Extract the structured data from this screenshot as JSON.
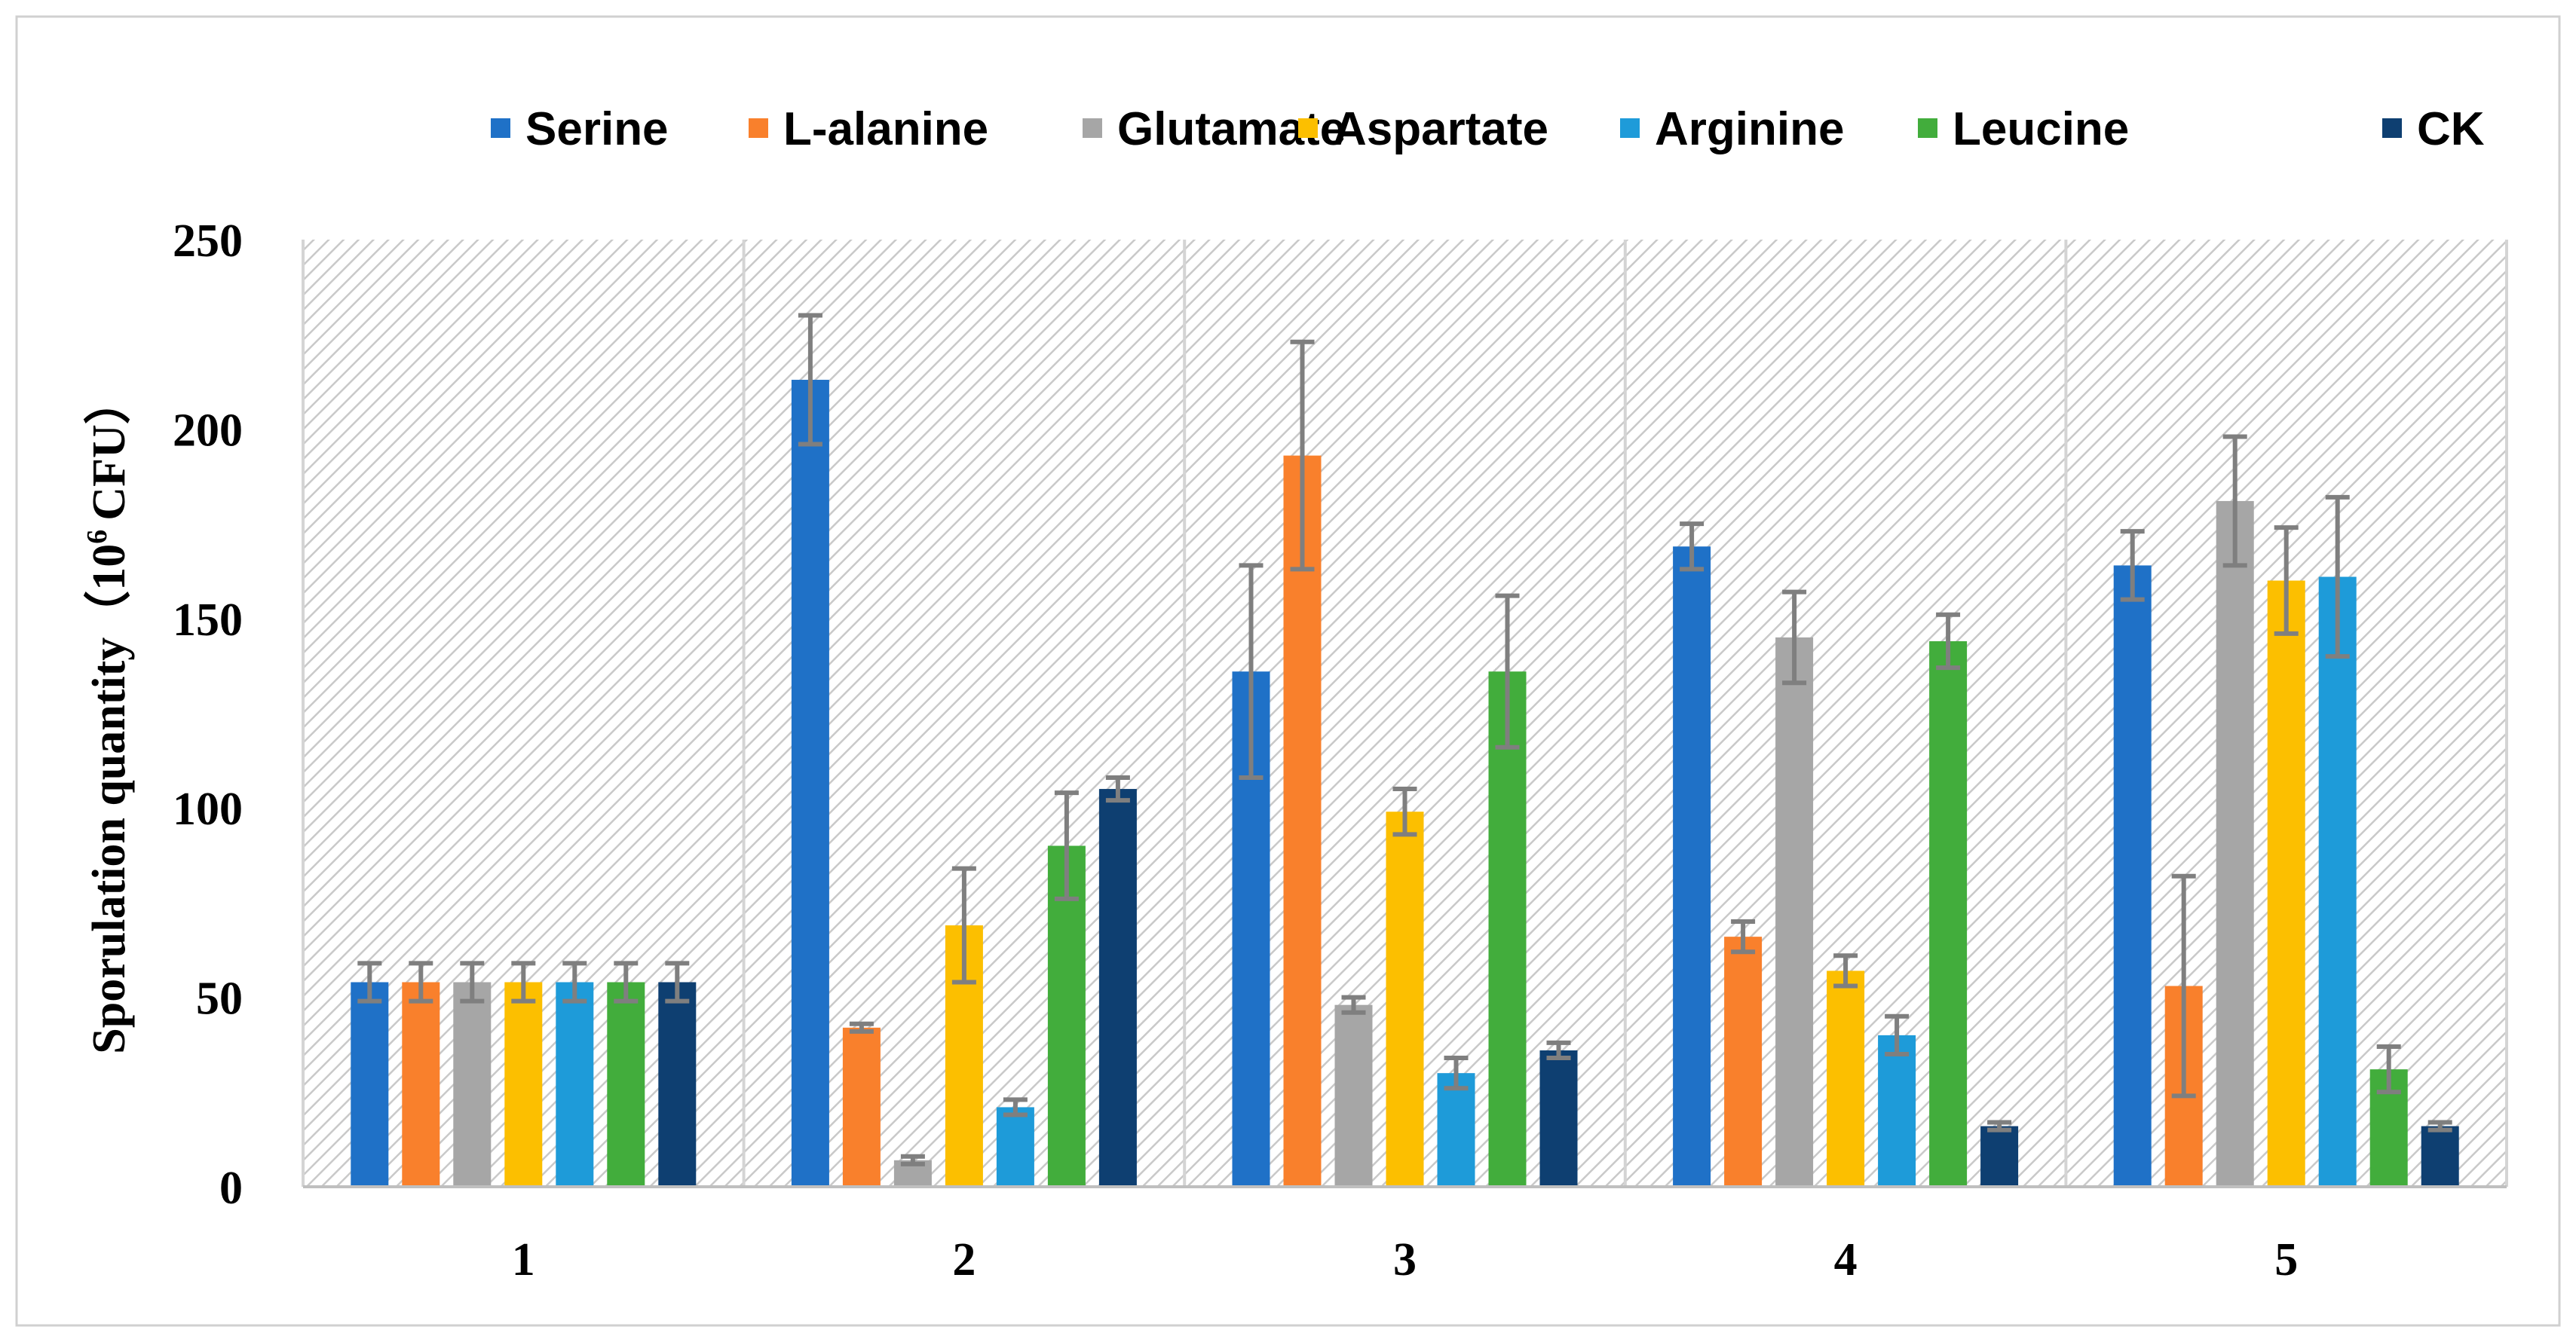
{
  "chart_data": {
    "type": "bar",
    "title": "",
    "xlabel": "",
    "ylabel": "Sporulation quantity（10",
    "ylabel_superscript": "6",
    "ylabel_unit": "CFU）",
    "ylim": [
      0,
      250
    ],
    "yticks": [
      "0",
      "50",
      "100",
      "150",
      "200",
      "250"
    ],
    "grid": false,
    "legend_position": "top",
    "categories": [
      "1",
      "2",
      "3",
      "4",
      "5"
    ],
    "series": [
      {
        "name": "Serine",
        "color": "#1f71c7",
        "values": [
          54,
          213,
          136,
          169,
          164
        ],
        "errors": [
          5,
          17,
          28,
          6,
          9
        ]
      },
      {
        "name": "L-alanine",
        "color": "#f9802c",
        "values": [
          54,
          42,
          193,
          66,
          53
        ],
        "errors": [
          5,
          1,
          30,
          4,
          29
        ]
      },
      {
        "name": "Glutamate",
        "color": "#a6a6a6",
        "values": [
          54,
          7,
          48,
          145,
          181
        ],
        "errors": [
          5,
          1,
          2,
          12,
          17
        ]
      },
      {
        "name": "Aspartate",
        "color": "#fcbf00",
        "values": [
          54,
          69,
          99,
          57,
          160
        ],
        "errors": [
          5,
          15,
          6,
          4,
          14
        ]
      },
      {
        "name": "Arginine",
        "color": "#1e9bd9",
        "values": [
          54,
          21,
          30,
          40,
          161
        ],
        "errors": [
          5,
          2,
          4,
          5,
          21
        ]
      },
      {
        "name": "Leucine",
        "color": "#42ad3c",
        "values": [
          54,
          90,
          136,
          144,
          31
        ],
        "errors": [
          5,
          14,
          20,
          7,
          6
        ]
      },
      {
        "name": "CK",
        "color": "#0e3f71",
        "values": [
          54,
          105,
          36,
          16,
          16
        ],
        "errors": [
          5,
          3,
          2,
          1,
          1
        ]
      }
    ]
  }
}
